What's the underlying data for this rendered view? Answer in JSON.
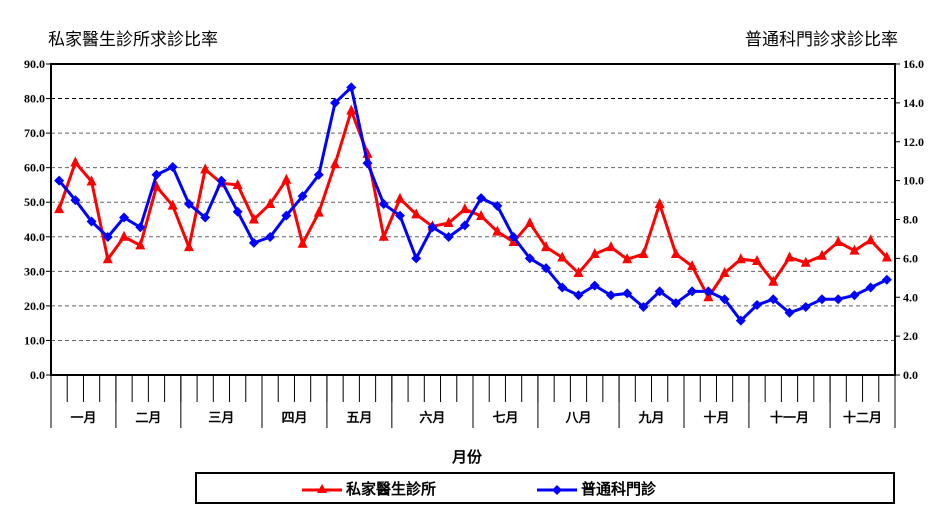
{
  "titles": {
    "left": "私家醫生診所求診比率",
    "right": "普通科門診求診比率"
  },
  "chart_data": {
    "type": "line",
    "xlabel": "月份",
    "months": [
      "一月",
      "二月",
      "三月",
      "四月",
      "五月",
      "六月",
      "七月",
      "八月",
      "九月",
      "十月",
      "十一月",
      "十二月"
    ],
    "weeks_per_month": [
      4,
      4,
      5,
      4,
      4,
      5,
      4,
      5,
      4,
      4,
      5,
      4
    ],
    "y_left": {
      "min": 0,
      "max": 90,
      "step": 10,
      "ticks": [
        "0.0",
        "10.0",
        "20.0",
        "30.0",
        "40.0",
        "50.0",
        "60.0",
        "70.0",
        "80.0",
        "90.0"
      ]
    },
    "y_right": {
      "min": 0,
      "max": 16,
      "step": 2,
      "ticks": [
        "0.0",
        "2.0",
        "4.0",
        "6.0",
        "8.0",
        "10.0",
        "12.0",
        "14.0",
        "16.0"
      ]
    },
    "grid": true,
    "legend_placement": "bottom",
    "series": [
      {
        "name": "私家醫生診所",
        "axis": "left",
        "color": "#ff0000",
        "marker": "triangle",
        "values": [
          48,
          61.5,
          56,
          33.5,
          40,
          37.5,
          54.5,
          49,
          37,
          59.5,
          55.5,
          55,
          45,
          49.5,
          56.5,
          38,
          47,
          61,
          76.5,
          64,
          40,
          51,
          46.5,
          43,
          44,
          48,
          46,
          41.5,
          38.5,
          44,
          37,
          34,
          29.5,
          35,
          37,
          33.5,
          35,
          49.5,
          35,
          31.5,
          22.5,
          29.5,
          33.5,
          33,
          27,
          34,
          32.5,
          34.5,
          38.5,
          36,
          39,
          34
        ]
      },
      {
        "name": "普通科門診",
        "axis": "right",
        "color": "#0000ff",
        "marker": "diamond",
        "values": [
          10.0,
          9.0,
          7.9,
          7.1,
          8.1,
          7.6,
          10.3,
          10.7,
          8.8,
          8.1,
          10.0,
          8.4,
          6.8,
          7.1,
          8.2,
          9.2,
          10.3,
          14.0,
          14.8,
          10.9,
          8.8,
          8.2,
          6.0,
          7.6,
          7.1,
          7.7,
          9.1,
          8.7,
          7.1,
          6.0,
          5.5,
          4.5,
          4.1,
          4.6,
          4.1,
          4.2,
          3.5,
          4.3,
          3.7,
          4.3,
          4.3,
          3.9,
          2.8,
          3.6,
          3.9,
          3.2,
          3.5,
          3.9,
          3.9,
          4.1,
          4.5,
          4.9
        ]
      }
    ]
  }
}
